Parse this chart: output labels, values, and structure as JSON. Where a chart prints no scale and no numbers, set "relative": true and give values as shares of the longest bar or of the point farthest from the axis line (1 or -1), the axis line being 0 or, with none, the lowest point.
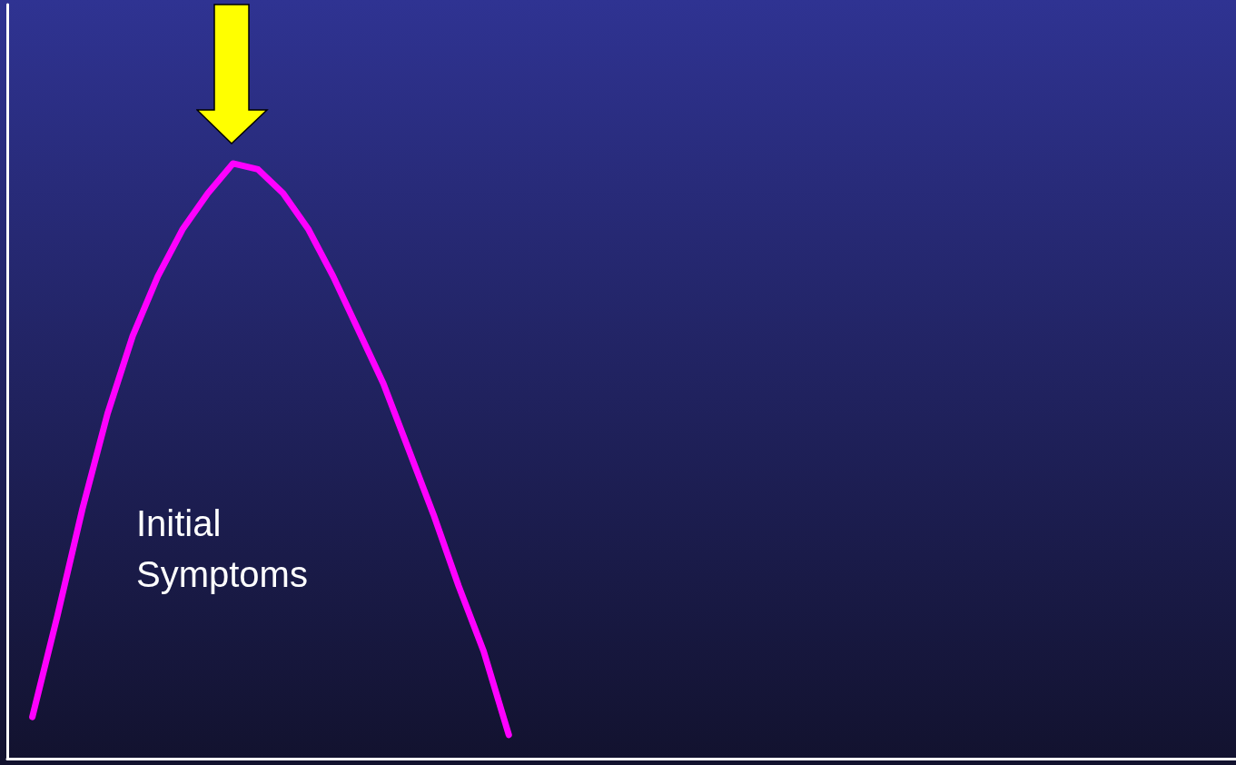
{
  "chart_data": {
    "type": "line",
    "relative": true,
    "annotations": [
      "Initial Symptoms"
    ],
    "categories": [
      null,
      null,
      null,
      null,
      null,
      null,
      null,
      null,
      null,
      null,
      null,
      null,
      null,
      null,
      null,
      null,
      null,
      null,
      null,
      null,
      null,
      null,
      null,
      null,
      null,
      null,
      null,
      null,
      null,
      null,
      null,
      null,
      null,
      null,
      null,
      null,
      null,
      null,
      null,
      null,
      null,
      null,
      null,
      null,
      null,
      null,
      null,
      null,
      null,
      null
    ],
    "series": [
      {
        "color": "#ff00ff",
        "values": [
          null,
          0.07,
          0.24,
          0.42,
          0.58,
          0.71,
          0.81,
          0.89,
          0.95,
          1.0,
          0.99,
          0.95,
          0.89,
          0.81,
          0.72,
          0.63,
          0.52,
          0.41,
          0.29,
          0.18,
          0.04,
          null,
          null,
          null,
          null,
          null,
          null,
          null,
          null,
          null,
          null,
          null,
          null,
          null,
          null,
          null,
          null,
          null,
          null,
          null,
          null,
          null,
          null,
          null,
          null,
          null,
          null,
          null,
          null,
          null
        ]
      }
    ],
    "marker": "none",
    "line_style": "solid"
  }
}
